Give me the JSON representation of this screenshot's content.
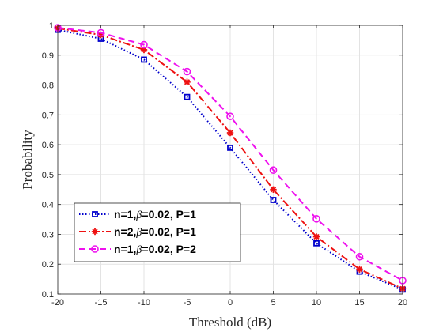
{
  "chart_data": {
    "type": "line",
    "title": "",
    "xlabel": "Threshold (dB)",
    "ylabel": "Probability",
    "xlim": [
      -20,
      20
    ],
    "ylim": [
      0.1,
      1.0
    ],
    "x": [
      -20,
      -15,
      -10,
      -5,
      0,
      5,
      10,
      15,
      20
    ],
    "xticks": [
      -20,
      -15,
      -10,
      -5,
      0,
      5,
      10,
      15,
      20
    ],
    "yticks": [
      0.1,
      0.2,
      0.3,
      0.4,
      0.5,
      0.6,
      0.7,
      0.8,
      0.9,
      1
    ],
    "xtick_labels": [
      "-20",
      "-15",
      "-10",
      "-5",
      "0",
      "5",
      "10",
      "15",
      "20"
    ],
    "ytick_labels": [
      "0.1",
      "0.2",
      "0.3",
      "0.4",
      "0.5",
      "0.6",
      "0.7",
      "0.8",
      "0.9",
      "1"
    ],
    "grid": true,
    "legend_position": "lower-left",
    "series": [
      {
        "name": "n=1,β=0.02, P=1",
        "label_parts": [
          "n=1,",
          "β",
          "=0.02, P=1"
        ],
        "color": "#0000cc",
        "line_style": "dotted",
        "marker": "square",
        "values": [
          0.985,
          0.955,
          0.885,
          0.76,
          0.59,
          0.415,
          0.27,
          0.175,
          0.115
        ]
      },
      {
        "name": "n=2,β=0.02, P=1",
        "label_parts": [
          "n=2,",
          "β",
          "=0.02, P=1"
        ],
        "color": "#ee1111",
        "line_style": "dash-dot",
        "marker": "asterisk",
        "values": [
          0.99,
          0.968,
          0.918,
          0.81,
          0.64,
          0.45,
          0.292,
          0.183,
          0.118
        ]
      },
      {
        "name": "n=1,β=0.02,  P=2",
        "label_parts": [
          "n=1,",
          "β",
          "=0.02,  P=2"
        ],
        "color": "#ee11ee",
        "line_style": "dashed",
        "marker": "circle",
        "values": [
          0.992,
          0.975,
          0.935,
          0.845,
          0.695,
          0.515,
          0.352,
          0.225,
          0.145
        ]
      }
    ]
  }
}
